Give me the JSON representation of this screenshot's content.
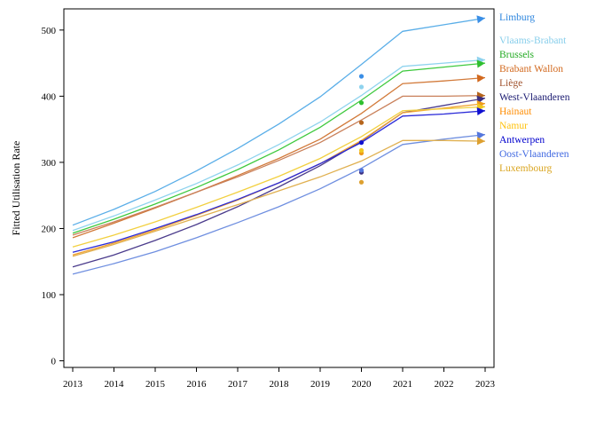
{
  "chart_data": {
    "type": "line",
    "title": "",
    "xlabel": "",
    "ylabel": "Fitted Utilisation Rate",
    "x": [
      "2013",
      "2014",
      "2015",
      "2016",
      "2017",
      "2018",
      "2019",
      "2020",
      "2021",
      "2022",
      "2023"
    ],
    "yticks": [
      "0",
      "100",
      "200",
      "300",
      "400",
      "500"
    ],
    "ylim": [
      -10,
      532
    ],
    "grid": false,
    "legend_position": "right",
    "observed_year": "2020",
    "series": [
      {
        "name": "Limburg",
        "color": "#5aaee8",
        "arrow_color": "#3a8ee6",
        "label_color": "#2e86de",
        "values": [
          205,
          229,
          256,
          287,
          321,
          358,
          399,
          448,
          498,
          508,
          518
        ],
        "observed_2020": 430
      },
      {
        "name": "Vlaams-Brabant",
        "color": "#8fd3ee",
        "arrow_color": "#8fd3ee",
        "label_color": "#87ceeb",
        "values": [
          197,
          219,
          243,
          268,
          296,
          327,
          361,
          401,
          445,
          450,
          455
        ],
        "observed_2020": 414
      },
      {
        "name": "Brussels",
        "color": "#3ec93e",
        "arrow_color": "#2fbf2f",
        "label_color": "#22aa22",
        "values": [
          193,
          214,
          237,
          262,
          289,
          319,
          353,
          394,
          438,
          444,
          450
        ],
        "observed_2020": 390
      },
      {
        "name": "Brabant Wallon",
        "color": "#d27a3a",
        "arrow_color": "#d2691e",
        "label_color": "#d2691e",
        "values": [
          186,
          208,
          231,
          255,
          280,
          306,
          335,
          374,
          419,
          423,
          428
        ],
        "observed_2020": null
      },
      {
        "name": "Liège",
        "color": "#c9805a",
        "arrow_color": "#b5651d",
        "label_color": "#a0522d",
        "values": [
          190,
          210,
          232,
          255,
          278,
          303,
          330,
          364,
          400,
          400,
          401
        ],
        "observed_2020": 360
      },
      {
        "name": "West-Vlaanderen",
        "color": "#4b3c8c",
        "arrow_color": "#3c2f80",
        "label_color": "#191970",
        "values": [
          142,
          160,
          182,
          206,
          233,
          263,
          295,
          332,
          375,
          386,
          397
        ],
        "observed_2020": 285
      },
      {
        "name": "Hainaut",
        "color": "#f0a030",
        "arrow_color": "#ee9a1a",
        "label_color": "#ff8c00",
        "values": [
          160,
          178,
          198,
          220,
          243,
          269,
          298,
          333,
          375,
          382,
          389
        ],
        "observed_2020": 314
      },
      {
        "name": "Namur",
        "color": "#f2d040",
        "arrow_color": "#f0c820",
        "label_color": "#ffc20e",
        "values": [
          172,
          190,
          210,
          232,
          255,
          279,
          306,
          339,
          378,
          381,
          384
        ],
        "observed_2020": 318
      },
      {
        "name": "Antwerpen",
        "color": "#2a2ad8",
        "arrow_color": "#1010d0",
        "label_color": "#0000cd",
        "values": [
          164,
          180,
          200,
          221,
          244,
          269,
          298,
          330,
          370,
          373,
          378
        ],
        "observed_2020": 330
      },
      {
        "name": "Oost-Vlaanderen",
        "color": "#6f8fe0",
        "arrow_color": "#5577dd",
        "label_color": "#4169e1",
        "values": [
          131,
          147,
          165,
          186,
          209,
          233,
          260,
          291,
          327,
          335,
          342
        ],
        "observed_2020": 288
      },
      {
        "name": "Luxembourg",
        "color": "#e0b050",
        "arrow_color": "#dda030",
        "label_color": "#daa520",
        "values": [
          158,
          176,
          196,
          216,
          236,
          257,
          278,
          302,
          333,
          333,
          332
        ],
        "observed_2020": 270
      }
    ]
  }
}
